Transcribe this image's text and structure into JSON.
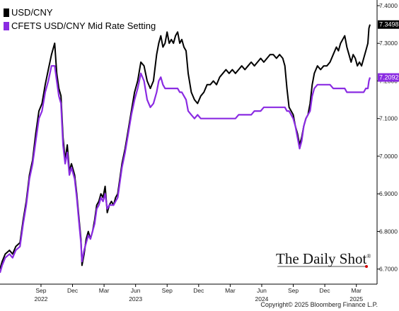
{
  "chart_data": {
    "type": "line",
    "title": "",
    "xlabel": "",
    "ylabel": "",
    "ylim": [
      6.66,
      7.4
    ],
    "y_ticks": [
      "7.4000",
      "7.3000",
      "7.2000",
      "7.1000",
      "7.0000",
      "6.9000",
      "6.8000",
      "6.7000"
    ],
    "x_ticks": [
      {
        "month": "Sep",
        "year": "2022",
        "t": 8
      },
      {
        "month": "Dec",
        "year": "",
        "t": 11
      },
      {
        "month": "Mar",
        "year": "",
        "t": 14
      },
      {
        "month": "Jun",
        "year": "2023",
        "t": 17
      },
      {
        "month": "Sep",
        "year": "",
        "t": 20
      },
      {
        "month": "Dec",
        "year": "",
        "t": 23
      },
      {
        "month": "Mar",
        "year": "",
        "t": 26
      },
      {
        "month": "Jun",
        "year": "2024",
        "t": 29
      },
      {
        "month": "Sep",
        "year": "",
        "t": 32
      },
      {
        "month": "Dec",
        "year": "",
        "t": 35
      },
      {
        "month": "Mar",
        "year": "2025",
        "t": 38
      }
    ],
    "x_range": [
      4.1,
      39.3
    ],
    "series": [
      {
        "name": "USD/CNY",
        "color": "#000000",
        "last_value": "7.3498",
        "points": [
          [
            4.1,
            6.7
          ],
          [
            4.3,
            6.72
          ],
          [
            4.6,
            6.74
          ],
          [
            5.0,
            6.75
          ],
          [
            5.3,
            6.74
          ],
          [
            5.6,
            6.76
          ],
          [
            6.0,
            6.77
          ],
          [
            6.3,
            6.83
          ],
          [
            6.6,
            6.88
          ],
          [
            6.9,
            6.95
          ],
          [
            7.2,
            6.99
          ],
          [
            7.5,
            7.06
          ],
          [
            7.8,
            7.12
          ],
          [
            8.1,
            7.14
          ],
          [
            8.4,
            7.19
          ],
          [
            8.7,
            7.23
          ],
          [
            9.0,
            7.27
          ],
          [
            9.3,
            7.3
          ],
          [
            9.5,
            7.22
          ],
          [
            9.7,
            7.18
          ],
          [
            9.9,
            7.16
          ],
          [
            10.1,
            7.05
          ],
          [
            10.3,
            6.99
          ],
          [
            10.5,
            7.03
          ],
          [
            10.7,
            6.96
          ],
          [
            10.9,
            6.98
          ],
          [
            11.0,
            6.97
          ],
          [
            11.2,
            6.95
          ],
          [
            11.4,
            6.9
          ],
          [
            11.6,
            6.84
          ],
          [
            11.8,
            6.78
          ],
          [
            11.9,
            6.71
          ],
          [
            12.1,
            6.74
          ],
          [
            12.3,
            6.78
          ],
          [
            12.5,
            6.8
          ],
          [
            12.7,
            6.78
          ],
          [
            12.9,
            6.8
          ],
          [
            13.1,
            6.83
          ],
          [
            13.3,
            6.87
          ],
          [
            13.5,
            6.88
          ],
          [
            13.7,
            6.9
          ],
          [
            13.9,
            6.89
          ],
          [
            14.1,
            6.92
          ],
          [
            14.3,
            6.85
          ],
          [
            14.5,
            6.87
          ],
          [
            14.7,
            6.88
          ],
          [
            14.9,
            6.87
          ],
          [
            15.1,
            6.89
          ],
          [
            15.3,
            6.9
          ],
          [
            15.5,
            6.94
          ],
          [
            15.7,
            6.98
          ],
          [
            16.0,
            7.02
          ],
          [
            16.3,
            7.07
          ],
          [
            16.6,
            7.12
          ],
          [
            16.9,
            7.17
          ],
          [
            17.2,
            7.2
          ],
          [
            17.5,
            7.25
          ],
          [
            17.8,
            7.24
          ],
          [
            18.1,
            7.2
          ],
          [
            18.4,
            7.18
          ],
          [
            18.7,
            7.2
          ],
          [
            19.0,
            7.27
          ],
          [
            19.2,
            7.3
          ],
          [
            19.4,
            7.32
          ],
          [
            19.6,
            7.29
          ],
          [
            19.8,
            7.3
          ],
          [
            20.0,
            7.33
          ],
          [
            20.2,
            7.3
          ],
          [
            20.4,
            7.31
          ],
          [
            20.6,
            7.3
          ],
          [
            20.8,
            7.32
          ],
          [
            21.0,
            7.33
          ],
          [
            21.2,
            7.3
          ],
          [
            21.4,
            7.31
          ],
          [
            21.6,
            7.29
          ],
          [
            21.8,
            7.28
          ],
          [
            22.0,
            7.22
          ],
          [
            22.3,
            7.17
          ],
          [
            22.6,
            7.15
          ],
          [
            22.9,
            7.14
          ],
          [
            23.2,
            7.16
          ],
          [
            23.5,
            7.17
          ],
          [
            23.8,
            7.19
          ],
          [
            24.1,
            7.19
          ],
          [
            24.4,
            7.2
          ],
          [
            24.7,
            7.19
          ],
          [
            25.0,
            7.21
          ],
          [
            25.3,
            7.22
          ],
          [
            25.6,
            7.23
          ],
          [
            25.9,
            7.22
          ],
          [
            26.2,
            7.23
          ],
          [
            26.5,
            7.22
          ],
          [
            26.8,
            7.23
          ],
          [
            27.1,
            7.24
          ],
          [
            27.4,
            7.23
          ],
          [
            27.7,
            7.24
          ],
          [
            28.0,
            7.25
          ],
          [
            28.3,
            7.24
          ],
          [
            28.6,
            7.25
          ],
          [
            28.9,
            7.26
          ],
          [
            29.2,
            7.25
          ],
          [
            29.5,
            7.26
          ],
          [
            29.8,
            7.27
          ],
          [
            30.1,
            7.27
          ],
          [
            30.4,
            7.26
          ],
          [
            30.7,
            7.27
          ],
          [
            31.0,
            7.26
          ],
          [
            31.2,
            7.24
          ],
          [
            31.4,
            7.18
          ],
          [
            31.6,
            7.13
          ],
          [
            31.8,
            7.12
          ],
          [
            32.0,
            7.11
          ],
          [
            32.2,
            7.08
          ],
          [
            32.4,
            7.06
          ],
          [
            32.6,
            7.03
          ],
          [
            32.8,
            7.05
          ],
          [
            33.0,
            7.08
          ],
          [
            33.2,
            7.1
          ],
          [
            33.4,
            7.11
          ],
          [
            33.6,
            7.14
          ],
          [
            33.8,
            7.19
          ],
          [
            34.0,
            7.22
          ],
          [
            34.3,
            7.24
          ],
          [
            34.6,
            7.23
          ],
          [
            34.9,
            7.24
          ],
          [
            35.2,
            7.24
          ],
          [
            35.5,
            7.25
          ],
          [
            35.8,
            7.27
          ],
          [
            36.1,
            7.29
          ],
          [
            36.3,
            7.28
          ],
          [
            36.5,
            7.3
          ],
          [
            36.7,
            7.31
          ],
          [
            36.9,
            7.32
          ],
          [
            37.1,
            7.29
          ],
          [
            37.3,
            7.27
          ],
          [
            37.5,
            7.25
          ],
          [
            37.7,
            7.27
          ],
          [
            37.9,
            7.26
          ],
          [
            38.1,
            7.24
          ],
          [
            38.3,
            7.25
          ],
          [
            38.5,
            7.24
          ],
          [
            38.7,
            7.26
          ],
          [
            38.9,
            7.28
          ],
          [
            39.1,
            7.3
          ],
          [
            39.2,
            7.34
          ],
          [
            39.3,
            7.3498
          ]
        ]
      },
      {
        "name": "CFETS USD/CNY Mid Rate Setting",
        "color": "#8a2be2",
        "last_value": "7.2092",
        "points": [
          [
            4.1,
            6.69
          ],
          [
            4.3,
            6.71
          ],
          [
            4.6,
            6.73
          ],
          [
            5.0,
            6.74
          ],
          [
            5.3,
            6.73
          ],
          [
            5.6,
            6.75
          ],
          [
            6.0,
            6.76
          ],
          [
            6.3,
            6.82
          ],
          [
            6.6,
            6.87
          ],
          [
            6.9,
            6.94
          ],
          [
            7.2,
            6.98
          ],
          [
            7.5,
            7.04
          ],
          [
            7.8,
            7.1
          ],
          [
            8.1,
            7.12
          ],
          [
            8.4,
            7.17
          ],
          [
            8.7,
            7.2
          ],
          [
            9.0,
            7.24
          ],
          [
            9.3,
            7.24
          ],
          [
            9.5,
            7.2
          ],
          [
            9.7,
            7.16
          ],
          [
            9.9,
            7.14
          ],
          [
            10.1,
            7.03
          ],
          [
            10.3,
            6.98
          ],
          [
            10.5,
            7.01
          ],
          [
            10.7,
            6.95
          ],
          [
            10.9,
            6.97
          ],
          [
            11.0,
            6.96
          ],
          [
            11.2,
            6.94
          ],
          [
            11.4,
            6.89
          ],
          [
            11.6,
            6.83
          ],
          [
            11.8,
            6.77
          ],
          [
            11.9,
            6.72
          ],
          [
            12.1,
            6.75
          ],
          [
            12.3,
            6.77
          ],
          [
            12.5,
            6.79
          ],
          [
            12.7,
            6.78
          ],
          [
            12.9,
            6.8
          ],
          [
            13.1,
            6.82
          ],
          [
            13.3,
            6.86
          ],
          [
            13.5,
            6.87
          ],
          [
            13.7,
            6.89
          ],
          [
            13.9,
            6.88
          ],
          [
            14.1,
            6.9
          ],
          [
            14.3,
            6.86
          ],
          [
            14.5,
            6.87
          ],
          [
            14.7,
            6.87
          ],
          [
            14.9,
            6.87
          ],
          [
            15.1,
            6.88
          ],
          [
            15.3,
            6.89
          ],
          [
            15.5,
            6.93
          ],
          [
            15.7,
            6.97
          ],
          [
            16.0,
            7.01
          ],
          [
            16.3,
            7.06
          ],
          [
            16.6,
            7.11
          ],
          [
            16.9,
            7.15
          ],
          [
            17.2,
            7.18
          ],
          [
            17.5,
            7.22
          ],
          [
            17.8,
            7.2
          ],
          [
            18.1,
            7.15
          ],
          [
            18.4,
            7.13
          ],
          [
            18.7,
            7.14
          ],
          [
            19.0,
            7.17
          ],
          [
            19.2,
            7.2
          ],
          [
            19.4,
            7.21
          ],
          [
            19.6,
            7.19
          ],
          [
            19.8,
            7.18
          ],
          [
            20.0,
            7.18
          ],
          [
            20.2,
            7.18
          ],
          [
            20.4,
            7.18
          ],
          [
            20.6,
            7.18
          ],
          [
            20.8,
            7.18
          ],
          [
            21.0,
            7.18
          ],
          [
            21.2,
            7.17
          ],
          [
            21.4,
            7.17
          ],
          [
            21.6,
            7.16
          ],
          [
            21.8,
            7.15
          ],
          [
            22.0,
            7.12
          ],
          [
            22.3,
            7.11
          ],
          [
            22.6,
            7.1
          ],
          [
            22.9,
            7.11
          ],
          [
            23.2,
            7.1
          ],
          [
            23.5,
            7.1
          ],
          [
            23.8,
            7.1
          ],
          [
            24.1,
            7.1
          ],
          [
            24.4,
            7.1
          ],
          [
            24.7,
            7.1
          ],
          [
            25.0,
            7.1
          ],
          [
            25.3,
            7.1
          ],
          [
            25.6,
            7.1
          ],
          [
            25.9,
            7.1
          ],
          [
            26.2,
            7.1
          ],
          [
            26.5,
            7.1
          ],
          [
            26.8,
            7.11
          ],
          [
            27.1,
            7.11
          ],
          [
            27.4,
            7.11
          ],
          [
            27.7,
            7.11
          ],
          [
            28.0,
            7.11
          ],
          [
            28.3,
            7.12
          ],
          [
            28.6,
            7.12
          ],
          [
            28.9,
            7.12
          ],
          [
            29.2,
            7.13
          ],
          [
            29.5,
            7.13
          ],
          [
            29.8,
            7.13
          ],
          [
            30.1,
            7.13
          ],
          [
            30.4,
            7.13
          ],
          [
            30.7,
            7.13
          ],
          [
            31.0,
            7.13
          ],
          [
            31.2,
            7.13
          ],
          [
            31.4,
            7.12
          ],
          [
            31.6,
            7.12
          ],
          [
            31.8,
            7.11
          ],
          [
            32.0,
            7.1
          ],
          [
            32.2,
            7.08
          ],
          [
            32.4,
            7.05
          ],
          [
            32.6,
            7.02
          ],
          [
            32.8,
            7.04
          ],
          [
            33.0,
            7.08
          ],
          [
            33.2,
            7.1
          ],
          [
            33.4,
            7.11
          ],
          [
            33.6,
            7.12
          ],
          [
            33.8,
            7.16
          ],
          [
            34.0,
            7.18
          ],
          [
            34.3,
            7.19
          ],
          [
            34.6,
            7.19
          ],
          [
            34.9,
            7.19
          ],
          [
            35.2,
            7.19
          ],
          [
            35.5,
            7.19
          ],
          [
            35.8,
            7.18
          ],
          [
            36.1,
            7.18
          ],
          [
            36.3,
            7.18
          ],
          [
            36.5,
            7.18
          ],
          [
            36.7,
            7.18
          ],
          [
            36.9,
            7.18
          ],
          [
            37.1,
            7.17
          ],
          [
            37.3,
            7.17
          ],
          [
            37.5,
            7.17
          ],
          [
            37.7,
            7.17
          ],
          [
            37.9,
            7.17
          ],
          [
            38.1,
            7.17
          ],
          [
            38.3,
            7.17
          ],
          [
            38.5,
            7.17
          ],
          [
            38.7,
            7.17
          ],
          [
            38.9,
            7.18
          ],
          [
            39.1,
            7.18
          ],
          [
            39.2,
            7.2
          ],
          [
            39.3,
            7.2092
          ]
        ]
      }
    ],
    "legend_position": "top-left",
    "grid": false
  },
  "watermark": {
    "text": "The Daily Shot",
    "registered": "®"
  },
  "source": {
    "text": "Copyright© 2025 Bloomberg Finance L.P."
  }
}
